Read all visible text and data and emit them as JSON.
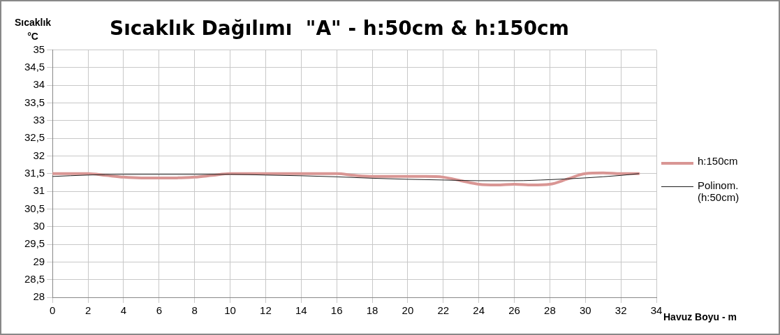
{
  "chart_data": {
    "type": "line",
    "title": "Sıcaklık Dağılımı  \"A\" - h:50cm & h:150cm",
    "xlabel": "Havuz Boyu - m",
    "ylabel": "Sıcaklık °C",
    "xlim": [
      0,
      34
    ],
    "xticks": [
      0,
      2,
      4,
      6,
      8,
      10,
      12,
      14,
      16,
      18,
      20,
      22,
      24,
      26,
      28,
      30,
      32,
      34
    ],
    "ylim": [
      28,
      35
    ],
    "yticks": [
      28,
      {
        "value": 28.5,
        "label": "28,5"
      },
      29,
      {
        "value": 29.5,
        "label": "29,5"
      },
      30,
      {
        "value": 30.5,
        "label": "30,5"
      },
      31,
      {
        "value": 31.5,
        "label": "31,5"
      },
      32,
      {
        "value": 32.5,
        "label": "32,5"
      },
      33,
      {
        "value": 33.5,
        "label": "33,5"
      },
      34,
      {
        "value": 34.5,
        "label": "34,5"
      },
      35
    ],
    "grid": true,
    "legend": "right",
    "marker": "none",
    "series": [
      {
        "name": "h:150cm",
        "color": "#d99694",
        "x": [
          0,
          2,
          3,
          4,
          5,
          6,
          7,
          8,
          9,
          10,
          12,
          14,
          16,
          17,
          18,
          20,
          21,
          22,
          23,
          24,
          25,
          26,
          27,
          28,
          29,
          30,
          31,
          32,
          33
        ],
        "values": [
          31.5,
          31.5,
          31.45,
          31.4,
          31.38,
          31.38,
          31.38,
          31.4,
          31.45,
          31.5,
          31.5,
          31.5,
          31.5,
          31.45,
          31.42,
          31.42,
          31.42,
          31.4,
          31.3,
          31.2,
          31.18,
          31.2,
          31.18,
          31.2,
          31.35,
          31.5,
          31.52,
          31.5,
          31.5
        ]
      },
      {
        "name": "Polinom. (h:50cm)",
        "color": "#1f1f1f",
        "x": [
          0,
          2,
          4,
          6,
          8,
          10,
          12,
          14,
          16,
          18,
          20,
          22,
          24,
          26,
          28,
          30,
          32,
          33
        ],
        "values": [
          31.42,
          31.46,
          31.48,
          31.48,
          31.48,
          31.48,
          31.46,
          31.44,
          31.41,
          31.37,
          31.34,
          31.32,
          31.3,
          31.3,
          31.33,
          31.38,
          31.45,
          31.5
        ]
      }
    ]
  }
}
